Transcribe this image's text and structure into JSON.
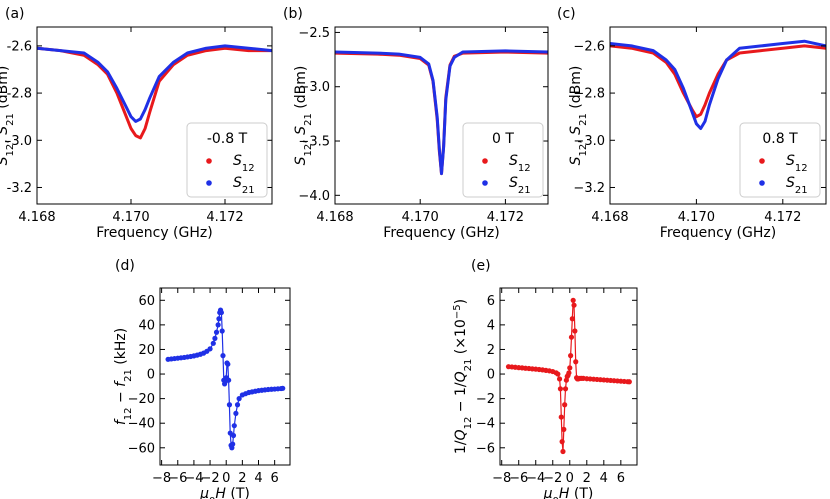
{
  "colors": {
    "s12": "#e8191c",
    "s21": "#1f30e6",
    "axis": "#000000"
  },
  "chart_data": [
    {
      "panel": "(a)",
      "type": "line",
      "xlabel": "Frequency (GHz)",
      "ylabel": "S12, S21 (dBm)",
      "xlim": [
        4.168,
        4.173
      ],
      "ylim": [
        -3.27,
        -2.52
      ],
      "xticks": [
        4.168,
        4.17,
        4.172
      ],
      "xtick_labels": [
        "4.168",
        "4.170",
        "4.172"
      ],
      "yticks": [
        -2.6,
        -2.8,
        -3.0,
        -3.2
      ],
      "ytick_labels": [
        "-2.6",
        "-2.8",
        "-3.0",
        "-3.2"
      ],
      "legend": {
        "title": "-0.8 T",
        "entries": [
          "S12",
          "S21"
        ],
        "placement": "lower-right"
      },
      "series": [
        {
          "name": "S12",
          "x": [
            4.168,
            4.1685,
            4.169,
            4.1693,
            4.1695,
            4.1697,
            4.1699,
            4.17,
            4.1701,
            4.1702,
            4.1703,
            4.1704,
            4.1706,
            4.1709,
            4.1712,
            4.1716,
            4.172,
            4.1725,
            4.173
          ],
          "values": [
            -2.61,
            -2.62,
            -2.64,
            -2.68,
            -2.72,
            -2.8,
            -2.9,
            -2.95,
            -2.98,
            -2.99,
            -2.95,
            -2.88,
            -2.75,
            -2.68,
            -2.64,
            -2.62,
            -2.61,
            -2.62,
            -2.62
          ]
        },
        {
          "name": "S21",
          "x": [
            4.168,
            4.1685,
            4.169,
            4.1693,
            4.1695,
            4.1697,
            4.1699,
            4.17,
            4.1701,
            4.1702,
            4.1703,
            4.1704,
            4.1706,
            4.1709,
            4.1712,
            4.1716,
            4.172,
            4.1725,
            4.173
          ],
          "values": [
            -2.61,
            -2.62,
            -2.63,
            -2.67,
            -2.71,
            -2.78,
            -2.86,
            -2.9,
            -2.92,
            -2.91,
            -2.87,
            -2.82,
            -2.73,
            -2.67,
            -2.63,
            -2.61,
            -2.6,
            -2.61,
            -2.62
          ]
        }
      ]
    },
    {
      "panel": "(b)",
      "type": "line",
      "xlabel": "Frequency (GHz)",
      "ylabel": "S12, S21 (dBm)",
      "xlim": [
        4.168,
        4.173
      ],
      "ylim": [
        -4.08,
        -2.45
      ],
      "xticks": [
        4.168,
        4.17,
        4.172
      ],
      "xtick_labels": [
        "4.168",
        "4.170",
        "4.172"
      ],
      "yticks": [
        -2.5,
        -3.0,
        -3.5,
        -4.0
      ],
      "ytick_labels": [
        "−2.5",
        "−3.0",
        "−3.5",
        "−4.0"
      ],
      "legend": {
        "title": "0 T",
        "entries": [
          "S12",
          "S21"
        ],
        "placement": "lower-right"
      },
      "series": [
        {
          "name": "S12",
          "x": [
            4.168,
            4.169,
            4.1695,
            4.17,
            4.1702,
            4.1703,
            4.1704,
            4.17045,
            4.1705,
            4.17055,
            4.1706,
            4.1707,
            4.1708,
            4.171,
            4.172,
            4.173
          ],
          "values": [
            -2.69,
            -2.7,
            -2.71,
            -2.74,
            -2.8,
            -2.95,
            -3.3,
            -3.6,
            -3.8,
            -3.55,
            -3.1,
            -2.8,
            -2.72,
            -2.69,
            -2.68,
            -2.69
          ]
        },
        {
          "name": "S21",
          "x": [
            4.168,
            4.169,
            4.1695,
            4.17,
            4.1702,
            4.1703,
            4.1704,
            4.17045,
            4.1705,
            4.17055,
            4.1706,
            4.1707,
            4.1708,
            4.171,
            4.172,
            4.173
          ],
          "values": [
            -2.68,
            -2.69,
            -2.7,
            -2.73,
            -2.79,
            -2.94,
            -3.28,
            -3.58,
            -3.8,
            -3.56,
            -3.12,
            -2.81,
            -2.73,
            -2.68,
            -2.67,
            -2.68
          ]
        }
      ]
    },
    {
      "panel": "(c)",
      "type": "line",
      "xlabel": "Frequency (GHz)",
      "ylabel": "S12, S21 (dBm)",
      "xlim": [
        4.168,
        4.173
      ],
      "ylim": [
        -3.27,
        -2.52
      ],
      "xticks": [
        4.168,
        4.17,
        4.172
      ],
      "xtick_labels": [
        "4.168",
        "4.170",
        "4.172"
      ],
      "yticks": [
        -2.6,
        -2.8,
        -3.0,
        -3.2
      ],
      "ytick_labels": [
        "−2.6",
        "−2.8",
        "−3.0",
        "−3.2"
      ],
      "legend": {
        "title": "0.8 T",
        "entries": [
          "S12",
          "S21"
        ],
        "placement": "lower-right"
      },
      "series": [
        {
          "name": "S12",
          "x": [
            4.168,
            4.1685,
            4.169,
            4.1693,
            4.1695,
            4.1697,
            4.1699,
            4.17,
            4.1701,
            4.1702,
            4.1703,
            4.1705,
            4.1707,
            4.171,
            4.1715,
            4.172,
            4.1725,
            4.173
          ],
          "values": [
            -2.6,
            -2.61,
            -2.63,
            -2.67,
            -2.72,
            -2.8,
            -2.87,
            -2.9,
            -2.89,
            -2.85,
            -2.8,
            -2.72,
            -2.66,
            -2.63,
            -2.62,
            -2.61,
            -2.6,
            -2.61
          ]
        },
        {
          "name": "S21",
          "x": [
            4.168,
            4.1685,
            4.169,
            4.1693,
            4.1695,
            4.1697,
            4.1699,
            4.17,
            4.1701,
            4.1702,
            4.1703,
            4.1705,
            4.1707,
            4.171,
            4.1715,
            4.172,
            4.1725,
            4.173
          ],
          "values": [
            -2.59,
            -2.6,
            -2.62,
            -2.66,
            -2.7,
            -2.78,
            -2.88,
            -2.93,
            -2.95,
            -2.92,
            -2.85,
            -2.74,
            -2.66,
            -2.61,
            -2.6,
            -2.59,
            -2.58,
            -2.6
          ]
        }
      ]
    },
    {
      "panel": "(d)",
      "type": "line",
      "xlabel": "μ0H (T)",
      "ylabel": "f12 − f21 (kHz)",
      "xlim": [
        -8.2,
        7.9
      ],
      "ylim": [
        -74,
        70
      ],
      "xticks": [
        -8,
        -6,
        -4,
        -2,
        0,
        2,
        4,
        6
      ],
      "xtick_labels": [
        "−8",
        "−6",
        "−4",
        "−2",
        "0",
        "2",
        "4",
        "6"
      ],
      "yticks": [
        60,
        40,
        20,
        0,
        -20,
        -40,
        -60
      ],
      "ytick_labels": [
        "60",
        "40",
        "20",
        "0",
        "−20",
        "−40",
        "−60"
      ],
      "series": [
        {
          "name": "f12 - f21",
          "color": "#1f30e6",
          "x": [
            -7.2,
            -6.8,
            -6.4,
            -6.0,
            -5.6,
            -5.2,
            -4.8,
            -4.4,
            -4.0,
            -3.6,
            -3.2,
            -2.8,
            -2.4,
            -2.0,
            -1.6,
            -1.4,
            -1.2,
            -1.0,
            -0.9,
            -0.8,
            -0.7,
            -0.6,
            -0.5,
            -0.4,
            -0.3,
            -0.2,
            -0.1,
            0.0,
            0.1,
            0.2,
            0.3,
            0.4,
            0.5,
            0.6,
            0.7,
            0.8,
            0.9,
            1.0,
            1.2,
            1.4,
            1.6,
            2.0,
            2.4,
            2.8,
            3.2,
            3.6,
            4.0,
            4.4,
            4.8,
            5.2,
            5.6,
            6.0,
            6.4,
            6.8,
            7.0
          ],
          "values": [
            12,
            12.3,
            12.6,
            12.9,
            13.2,
            13.5,
            13.9,
            14.3,
            14.8,
            15.4,
            16.1,
            17.0,
            18.5,
            20.5,
            25,
            29,
            34,
            40,
            45,
            50,
            52,
            50,
            35,
            15,
            -5,
            -8,
            -6,
            -3,
            9,
            8,
            -5,
            -25,
            -48,
            -58,
            -60,
            -57,
            -50,
            -42,
            -32,
            -25,
            -20,
            -17,
            -16,
            -15,
            -14.5,
            -14,
            -13.5,
            -13.2,
            -12.9,
            -12.6,
            -12.4,
            -12.2,
            -12,
            -11.8,
            -11.6
          ]
        }
      ]
    },
    {
      "panel": "(e)",
      "type": "line",
      "xlabel": "μ0H (T)",
      "ylabel": "1/Q12 − 1/Q21 (×10−5)",
      "xlim": [
        -8.2,
        7.9
      ],
      "ylim": [
        -7.4,
        7.0
      ],
      "xticks": [
        -8,
        -6,
        -4,
        -2,
        0,
        2,
        4,
        6
      ],
      "xtick_labels": [
        "−8",
        "−6",
        "−4",
        "−2",
        "0",
        "2",
        "4",
        "6"
      ],
      "yticks": [
        6,
        4,
        2,
        0,
        -2,
        -4,
        -6
      ],
      "ytick_labels": [
        "6",
        "4",
        "2",
        "0",
        "−2",
        "−4",
        "−6"
      ],
      "series": [
        {
          "name": "1/Q12 - 1/Q21",
          "color": "#e8191c",
          "x": [
            -7.2,
            -6.8,
            -6.4,
            -6.0,
            -5.6,
            -5.2,
            -4.8,
            -4.4,
            -4.0,
            -3.6,
            -3.2,
            -2.8,
            -2.4,
            -2.0,
            -1.6,
            -1.4,
            -1.2,
            -1.1,
            -1.0,
            -0.9,
            -0.8,
            -0.7,
            -0.6,
            -0.5,
            -0.4,
            -0.3,
            -0.2,
            -0.1,
            0.0,
            0.1,
            0.2,
            0.3,
            0.4,
            0.5,
            0.6,
            0.7,
            0.8,
            0.9,
            1.0,
            1.2,
            1.4,
            1.6,
            2.0,
            2.4,
            2.8,
            3.2,
            3.6,
            4.0,
            4.4,
            4.8,
            5.2,
            5.6,
            6.0,
            6.4,
            6.8,
            7.0
          ],
          "values": [
            0.6,
            0.58,
            0.55,
            0.52,
            0.5,
            0.47,
            0.45,
            0.42,
            0.4,
            0.37,
            0.34,
            0.3,
            0.26,
            0.2,
            0.1,
            0.0,
            -0.4,
            -1.2,
            -3.5,
            -5.5,
            -6.3,
            -4.5,
            -2.5,
            -1.2,
            -0.5,
            -0.2,
            -0.1,
            0.1,
            0.5,
            1.5,
            3.0,
            4.5,
            6.0,
            5.6,
            3.5,
            1.0,
            -0.3,
            -0.4,
            -0.4,
            -0.35,
            -0.35,
            -0.35,
            -0.38,
            -0.4,
            -0.42,
            -0.44,
            -0.46,
            -0.48,
            -0.5,
            -0.52,
            -0.54,
            -0.56,
            -0.58,
            -0.6,
            -0.62,
            -0.63
          ]
        }
      ]
    }
  ]
}
